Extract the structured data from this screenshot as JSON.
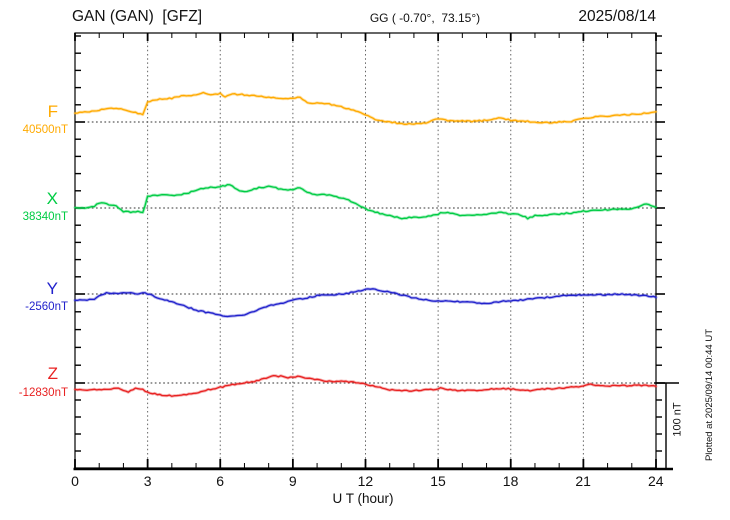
{
  "header": {
    "station_title": "GAN (GAN)  [GFZ]",
    "coords": "GG ( -0.70°,  73.15°)",
    "date": "2025/08/14"
  },
  "axis": {
    "xlabel": "U T (hour)",
    "ticks": [
      "0",
      "3",
      "6",
      "9",
      "12",
      "15",
      "18",
      "21",
      "24"
    ]
  },
  "scale_bar": {
    "label": "100 nT"
  },
  "footnote": "Plotted at 2025/09/14 00:44 UT",
  "channels": [
    {
      "name": "F",
      "baseline_label": "40500nT",
      "color": "#ffaa00"
    },
    {
      "name": "X",
      "baseline_label": "38340nT",
      "color": "#00cc44"
    },
    {
      "name": "Y",
      "baseline_label": "-2560nT",
      "color": "#2222cc"
    },
    {
      "name": "Z",
      "baseline_label": "-12830nT",
      "color": "#e82222"
    }
  ],
  "chart_data": {
    "type": "line",
    "title": "GAN (GAN) [GFZ] magnetogram 2025/08/14",
    "xlabel": "U T (hour)",
    "x_range": [
      0,
      24
    ],
    "x_ticks": [
      0,
      3,
      6,
      9,
      12,
      15,
      18,
      21,
      24
    ],
    "grid": "dotted vertical every 3 h, dotted horizontal at each channel baseline",
    "scale_bar_nT": 100,
    "series": [
      {
        "name": "F",
        "baseline_nT": 40500,
        "color": "#ffaa00",
        "points": [
          [
            0,
            40511
          ],
          [
            0.5,
            40512
          ],
          [
            1,
            40514
          ],
          [
            1.5,
            40516
          ],
          [
            2,
            40515
          ],
          [
            2.5,
            40511
          ],
          [
            2.8,
            40509
          ],
          [
            3,
            40524
          ],
          [
            3.5,
            40527
          ],
          [
            4,
            40528
          ],
          [
            4.5,
            40531
          ],
          [
            5,
            40532
          ],
          [
            5.3,
            40534
          ],
          [
            5.7,
            40532
          ],
          [
            6,
            40534
          ],
          [
            6.2,
            40529
          ],
          [
            6.5,
            40533
          ],
          [
            7,
            40532
          ],
          [
            7.5,
            40531
          ],
          [
            8,
            40529
          ],
          [
            8.5,
            40528
          ],
          [
            9,
            40528
          ],
          [
            9.3,
            40529
          ],
          [
            9.6,
            40522
          ],
          [
            10,
            40522
          ],
          [
            10.5,
            40521
          ],
          [
            11,
            40518
          ],
          [
            11.5,
            40514
          ],
          [
            12,
            40508
          ],
          [
            12.5,
            40502
          ],
          [
            13,
            40500
          ],
          [
            13.5,
            40498
          ],
          [
            14,
            40498
          ],
          [
            14.5,
            40499
          ],
          [
            15,
            40504
          ],
          [
            15.3,
            40502
          ],
          [
            16,
            40501
          ],
          [
            16.5,
            40501
          ],
          [
            17,
            40502
          ],
          [
            17.5,
            40505
          ],
          [
            18,
            40502
          ],
          [
            18.5,
            40501
          ],
          [
            19,
            40500
          ],
          [
            19.5,
            40499
          ],
          [
            20,
            40500
          ],
          [
            20.5,
            40501
          ],
          [
            21,
            40504
          ],
          [
            21.5,
            40506
          ],
          [
            22,
            40507
          ],
          [
            22.5,
            40508
          ],
          [
            23,
            40509
          ],
          [
            23.5,
            40510
          ],
          [
            24,
            40512
          ]
        ]
      },
      {
        "name": "X",
        "baseline_nT": 38340,
        "color": "#00cc44",
        "points": [
          [
            0,
            38340
          ],
          [
            0.5,
            38340
          ],
          [
            0.8,
            38342
          ],
          [
            1,
            38346
          ],
          [
            1.3,
            38345
          ],
          [
            1.7,
            38342
          ],
          [
            2,
            38336
          ],
          [
            2.3,
            38335
          ],
          [
            2.6,
            38336
          ],
          [
            2.8,
            38334
          ],
          [
            3,
            38354
          ],
          [
            3.3,
            38355
          ],
          [
            4,
            38355
          ],
          [
            4.3,
            38355
          ],
          [
            4.7,
            38358
          ],
          [
            5,
            38361
          ],
          [
            5.5,
            38364
          ],
          [
            6,
            38365
          ],
          [
            6.3,
            38367
          ],
          [
            6.5,
            38366
          ],
          [
            6.8,
            38360
          ],
          [
            7,
            38359
          ],
          [
            7.3,
            38361
          ],
          [
            7.6,
            38364
          ],
          [
            8,
            38365
          ],
          [
            8.3,
            38364
          ],
          [
            8.6,
            38361
          ],
          [
            9,
            38362
          ],
          [
            9.3,
            38364
          ],
          [
            9.6,
            38358
          ],
          [
            10,
            38356
          ],
          [
            10.5,
            38355
          ],
          [
            11,
            38352
          ],
          [
            11.5,
            38347
          ],
          [
            12,
            38339
          ],
          [
            12.3,
            38336
          ],
          [
            12.7,
            38333
          ],
          [
            13,
            38331
          ],
          [
            13.5,
            38328
          ],
          [
            14,
            38329
          ],
          [
            14.5,
            38330
          ],
          [
            15,
            38333
          ],
          [
            15.2,
            38335
          ],
          [
            15.5,
            38334
          ],
          [
            16,
            38331
          ],
          [
            16.5,
            38332
          ],
          [
            17,
            38332
          ],
          [
            17.5,
            38335
          ],
          [
            18,
            38333
          ],
          [
            18.4,
            38332
          ],
          [
            18.7,
            38328
          ],
          [
            19,
            38331
          ],
          [
            19.5,
            38332
          ],
          [
            20,
            38333
          ],
          [
            20.5,
            38334
          ],
          [
            21,
            38336
          ],
          [
            21.5,
            38338
          ],
          [
            22,
            38338
          ],
          [
            22.5,
            38339
          ],
          [
            23,
            38339
          ],
          [
            23.3,
            38341
          ],
          [
            23.6,
            38345
          ],
          [
            24,
            38341
          ]
        ]
      },
      {
        "name": "Y",
        "baseline_nT": -2560,
        "color": "#2222cc",
        "points": [
          [
            0,
            -2567
          ],
          [
            0.5,
            -2567
          ],
          [
            0.8,
            -2566
          ],
          [
            1,
            -2562
          ],
          [
            1.3,
            -2559
          ],
          [
            1.6,
            -2559
          ],
          [
            2,
            -2559
          ],
          [
            2.3,
            -2558
          ],
          [
            2.6,
            -2560
          ],
          [
            2.8,
            -2558
          ],
          [
            3,
            -2560
          ],
          [
            3.5,
            -2565
          ],
          [
            4,
            -2569
          ],
          [
            4.5,
            -2574
          ],
          [
            5,
            -2579
          ],
          [
            5.5,
            -2582
          ],
          [
            6,
            -2585
          ],
          [
            6.3,
            -2586
          ],
          [
            6.7,
            -2586
          ],
          [
            7,
            -2584
          ],
          [
            7.5,
            -2579
          ],
          [
            8,
            -2574
          ],
          [
            8.5,
            -2571
          ],
          [
            9,
            -2567
          ],
          [
            9.5,
            -2565
          ],
          [
            10,
            -2562
          ],
          [
            10.5,
            -2561
          ],
          [
            11,
            -2560
          ],
          [
            11.5,
            -2558
          ],
          [
            12,
            -2555
          ],
          [
            12.2,
            -2554
          ],
          [
            12.5,
            -2555
          ],
          [
            13,
            -2558
          ],
          [
            13.5,
            -2561
          ],
          [
            14,
            -2565
          ],
          [
            14.5,
            -2567
          ],
          [
            15,
            -2568
          ],
          [
            15.5,
            -2569
          ],
          [
            16,
            -2569
          ],
          [
            16.5,
            -2570
          ],
          [
            17,
            -2571
          ],
          [
            17.5,
            -2569
          ],
          [
            18,
            -2568
          ],
          [
            18.5,
            -2567
          ],
          [
            19,
            -2565
          ],
          [
            19.5,
            -2564
          ],
          [
            20,
            -2562
          ],
          [
            20.5,
            -2562
          ],
          [
            21,
            -2561
          ],
          [
            21.5,
            -2561
          ],
          [
            22,
            -2561
          ],
          [
            22.5,
            -2560
          ],
          [
            23,
            -2561
          ],
          [
            23.5,
            -2562
          ],
          [
            24,
            -2564
          ]
        ]
      },
      {
        "name": "Z",
        "baseline_nT": -12830,
        "color": "#e82222",
        "points": [
          [
            0,
            -12838
          ],
          [
            0.5,
            -12838
          ],
          [
            1,
            -12838
          ],
          [
            1.5,
            -12837
          ],
          [
            1.8,
            -12836
          ],
          [
            2.2,
            -12841
          ],
          [
            2.5,
            -12836
          ],
          [
            2.8,
            -12838
          ],
          [
            3,
            -12841
          ],
          [
            3.5,
            -12844
          ],
          [
            3.8,
            -12845
          ],
          [
            4.2,
            -12845
          ],
          [
            4.6,
            -12844
          ],
          [
            5,
            -12842
          ],
          [
            5.5,
            -12838
          ],
          [
            6,
            -12835
          ],
          [
            6.5,
            -12832
          ],
          [
            7,
            -12830
          ],
          [
            7.4,
            -12828
          ],
          [
            7.8,
            -12825
          ],
          [
            8.2,
            -12822
          ],
          [
            8.5,
            -12822
          ],
          [
            8.8,
            -12824
          ],
          [
            9.2,
            -12822
          ],
          [
            9.5,
            -12824
          ],
          [
            10,
            -12826
          ],
          [
            10.4,
            -12828
          ],
          [
            11,
            -12828
          ],
          [
            11.5,
            -12829
          ],
          [
            12,
            -12831
          ],
          [
            12.5,
            -12835
          ],
          [
            13,
            -12838
          ],
          [
            13.5,
            -12839
          ],
          [
            14,
            -12839
          ],
          [
            14.7,
            -12838
          ],
          [
            15.1,
            -12836
          ],
          [
            15.5,
            -12838
          ],
          [
            16,
            -12839
          ],
          [
            16.5,
            -12839
          ],
          [
            17,
            -12838
          ],
          [
            17.3,
            -12837
          ],
          [
            18,
            -12837
          ],
          [
            18.4,
            -12838
          ],
          [
            18.7,
            -12839
          ],
          [
            19,
            -12838
          ],
          [
            19.5,
            -12837
          ],
          [
            20,
            -12836
          ],
          [
            20.5,
            -12835
          ],
          [
            21,
            -12834
          ],
          [
            21.2,
            -12831
          ],
          [
            21.5,
            -12833
          ],
          [
            22,
            -12834
          ],
          [
            22.5,
            -12833
          ],
          [
            23,
            -12833
          ],
          [
            23.5,
            -12833
          ],
          [
            24,
            -12834
          ]
        ]
      }
    ]
  }
}
